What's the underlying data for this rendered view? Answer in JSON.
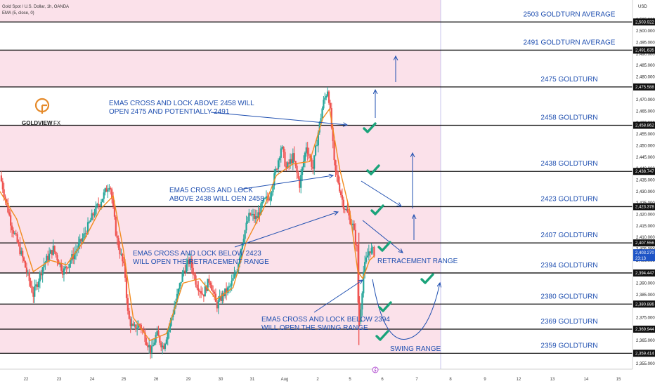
{
  "chart_data": {
    "type": "candlestick",
    "header": {
      "symbol": "Gold Spot / U.S. Dollar, 1h, OANDA",
      "indicator": "EMA (5, close, 0)"
    },
    "currency": "USD",
    "ylim": [
      2352.5,
      2513.5
    ],
    "y_ticks": [
      2355,
      2360,
      2365,
      2370,
      2375,
      2380,
      2385,
      2390,
      2395,
      2400,
      2405,
      2410,
      2415,
      2420,
      2425,
      2430,
      2435,
      2440,
      2445,
      2450,
      2455,
      2460,
      2465,
      2470,
      2475,
      2480,
      2485,
      2490,
      2495,
      2500,
      2505
    ],
    "x_ticks": [
      {
        "label": "22",
        "t": 0.5
      },
      {
        "label": "23",
        "t": 1.5
      },
      {
        "label": "24",
        "t": 2.5
      },
      {
        "label": "25",
        "t": 3.5
      },
      {
        "label": "26",
        "t": 4.5
      },
      {
        "label": "29",
        "t": 5.5
      },
      {
        "label": "30",
        "t": 6.5
      },
      {
        "label": "31",
        "t": 7.5
      },
      {
        "label": "Aug",
        "t": 8.5
      },
      {
        "label": "2",
        "t": 9.5
      },
      {
        "label": "5",
        "t": 10.5
      },
      {
        "label": "6",
        "t": 11.5
      },
      {
        "label": "7",
        "t": 12.5
      },
      {
        "label": "8",
        "t": 13.5
      },
      {
        "label": "9",
        "t": 14.5
      },
      {
        "label": "12",
        "t": 15.5
      },
      {
        "label": "13",
        "t": 16.5
      },
      {
        "label": "14",
        "t": 17.5
      },
      {
        "label": "15",
        "t": 18.5
      }
    ],
    "current_price": {
      "value": 2403.27,
      "label": "2,403.270",
      "countdown": "23:13"
    },
    "levels": [
      {
        "value": 2503.922,
        "axis_label": "2,503.922",
        "label": "2503 GOLDTURN AVERAGE"
      },
      {
        "value": 2491.635,
        "axis_label": "2,491.635",
        "label": "2491 GOLDTURN AVERAGE"
      },
      {
        "value": 2475.588,
        "axis_label": "2,475.588",
        "label": "2475 GOLDTURN"
      },
      {
        "value": 2458.862,
        "axis_label": "2,458.862",
        "label": "2458 GOLDTURN"
      },
      {
        "value": 2438.747,
        "axis_label": "2,438.747",
        "label": "2438 GOLDTURN"
      },
      {
        "value": 2423.378,
        "axis_label": "2,423.378",
        "label": "2423 GOLDTURN"
      },
      {
        "value": 2407.556,
        "axis_label": "2,407.556",
        "label": "2407 GOLDTURN"
      },
      {
        "value": 2394.447,
        "axis_label": "2,394.447",
        "label": "2394 GOLDTURN"
      },
      {
        "value": 2380.886,
        "axis_label": "2,380.886",
        "label": "2380 GOLDTURN"
      },
      {
        "value": 2369.944,
        "axis_label": "2,369.944",
        "label": "2369 GOLDTURN"
      },
      {
        "value": 2359.414,
        "axis_label": "2,359.414",
        "label": "2359 GOLDTURN"
      }
    ],
    "zones": [
      {
        "from": 2503.922,
        "to": 2513.5
      },
      {
        "from": 2475.588,
        "to": 2491.635
      },
      {
        "from": 2438.747,
        "to": 2458.862
      },
      {
        "from": 2407.556,
        "to": 2423.378
      },
      {
        "from": 2394.447,
        "to": 2407.556
      },
      {
        "from": 2369.944,
        "to": 2380.886
      },
      {
        "from": 2359.414,
        "to": 2369.944
      }
    ],
    "price_path": [
      [
        0.0,
        2437
      ],
      [
        0.35,
        2415
      ],
      [
        0.7,
        2400
      ],
      [
        1.0,
        2385
      ],
      [
        1.3,
        2398
      ],
      [
        1.6,
        2405
      ],
      [
        1.9,
        2395
      ],
      [
        2.2,
        2402
      ],
      [
        2.5,
        2410
      ],
      [
        2.8,
        2420
      ],
      [
        3.1,
        2428
      ],
      [
        3.3,
        2434
      ],
      [
        3.5,
        2410
      ],
      [
        3.75,
        2395
      ],
      [
        3.85,
        2375
      ],
      [
        4.0,
        2370
      ],
      [
        4.2,
        2372
      ],
      [
        4.4,
        2365
      ],
      [
        4.55,
        2360
      ],
      [
        4.7,
        2368
      ],
      [
        4.9,
        2362
      ],
      [
        5.1,
        2372
      ],
      [
        5.3,
        2383
      ],
      [
        5.5,
        2395
      ],
      [
        5.7,
        2400
      ],
      [
        5.9,
        2390
      ],
      [
        6.1,
        2385
      ],
      [
        6.3,
        2392
      ],
      [
        6.5,
        2380
      ],
      [
        6.7,
        2385
      ],
      [
        6.9,
        2388
      ],
      [
        7.1,
        2395
      ],
      [
        7.3,
        2410
      ],
      [
        7.5,
        2420
      ],
      [
        7.7,
        2418
      ],
      [
        7.9,
        2425
      ],
      [
        8.1,
        2428
      ],
      [
        8.3,
        2440
      ],
      [
        8.45,
        2450
      ],
      [
        8.6,
        2440
      ],
      [
        8.8,
        2445
      ],
      [
        9.0,
        2433
      ],
      [
        9.2,
        2450
      ],
      [
        9.4,
        2440
      ],
      [
        9.55,
        2455
      ],
      [
        9.7,
        2468
      ],
      [
        9.85,
        2475
      ],
      [
        9.95,
        2460
      ],
      [
        10.05,
        2440
      ],
      [
        10.15,
        2435
      ],
      [
        10.3,
        2425
      ],
      [
        10.45,
        2420
      ],
      [
        10.6,
        2415
      ],
      [
        10.72,
        2405
      ],
      [
        10.78,
        2370
      ],
      [
        10.84,
        2380
      ],
      [
        10.92,
        2395
      ],
      [
        11.0,
        2400
      ],
      [
        11.1,
        2405
      ],
      [
        11.25,
        2403.27
      ]
    ],
    "ema_path": [
      [
        0.0,
        2430
      ],
      [
        0.5,
        2418
      ],
      [
        1.0,
        2395
      ],
      [
        1.5,
        2400
      ],
      [
        2.0,
        2398
      ],
      [
        2.5,
        2408
      ],
      [
        3.0,
        2422
      ],
      [
        3.4,
        2428
      ],
      [
        3.7,
        2405
      ],
      [
        4.0,
        2375
      ],
      [
        4.5,
        2365
      ],
      [
        5.0,
        2368
      ],
      [
        5.5,
        2390
      ],
      [
        6.0,
        2392
      ],
      [
        6.5,
        2383
      ],
      [
        7.0,
        2388
      ],
      [
        7.4,
        2408
      ],
      [
        7.9,
        2422
      ],
      [
        8.3,
        2437
      ],
      [
        8.8,
        2442
      ],
      [
        9.3,
        2443
      ],
      [
        9.7,
        2462
      ],
      [
        9.9,
        2466
      ],
      [
        10.2,
        2440
      ],
      [
        10.5,
        2422
      ],
      [
        10.75,
        2395
      ],
      [
        10.9,
        2392
      ],
      [
        11.1,
        2400
      ],
      [
        11.25,
        2402
      ]
    ],
    "annotations": [
      {
        "id": "a1",
        "lines": [
          "EMA5 CROSS AND LOCK ABOVE 2458 WILL",
          "OPEN 2475 AND POTENTIALLY 2491"
        ]
      },
      {
        "id": "a2",
        "lines": [
          "EMA5 CROSS AND LOCK",
          "ABOVE 2438 WILL OEN 2458"
        ]
      },
      {
        "id": "a3",
        "lines": [
          "EMA5 CROSS AND LOCK BELOW 2423",
          "WILL OPEN THE RETRACEMENT RANGE"
        ]
      },
      {
        "id": "a4",
        "lines": [
          "EMA5 CROSS AND LOCK BELOW 2394",
          "WILL OPEN THE SWING RANGE"
        ]
      }
    ],
    "range_labels": {
      "retracement": "RETRACEMENT RANGE",
      "swing": "SWING RANGE"
    },
    "logo": {
      "brand": "GOLDVIEW",
      "suffix": "FX"
    },
    "colors": {
      "zone": "#fbe1ea",
      "up": "#26a69a",
      "down": "#ef5350",
      "ema": "#f28b1e",
      "annotation": "#1f4fb0",
      "check": "#1aa37a",
      "logo": "#e58a2a"
    }
  }
}
